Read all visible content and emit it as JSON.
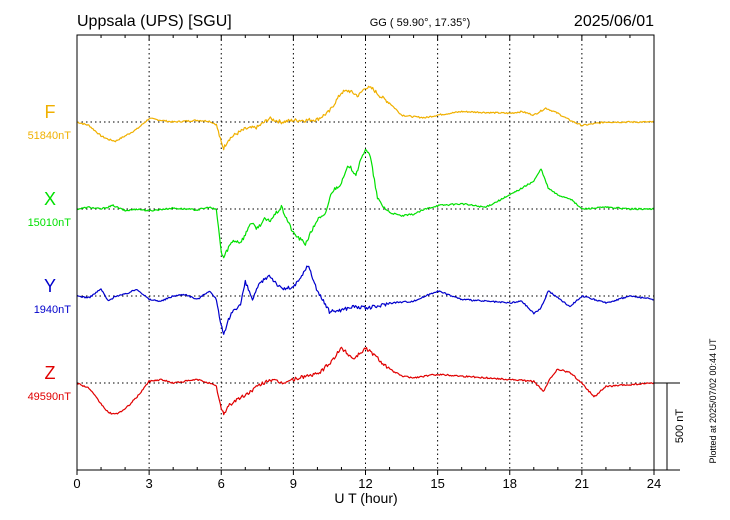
{
  "header": {
    "station": "Uppsala (UPS)  [SGU]",
    "coords": "GG ( 59.90°,  17.35°)",
    "date": "2025/06/01"
  },
  "side_note": "Plotted at 2025/07/02 00:44 UT",
  "scale_label": "500 nT",
  "colors": {
    "F": "#f0b000",
    "X": "#00e000",
    "Y": "#0000cc",
    "Z": "#e00000",
    "axis": "#000000"
  },
  "chart_data": {
    "type": "line",
    "title": "Uppsala (UPS)  [SGU]",
    "xlabel": "U T (hour)",
    "ylabel": "",
    "xlim": [
      0,
      24
    ],
    "x_ticks": [
      0,
      3,
      6,
      9,
      12,
      15,
      18,
      21,
      24
    ],
    "x_tick_labels": [
      "0",
      "3",
      "6",
      "9",
      "12",
      "15",
      "18",
      "21",
      "24"
    ],
    "grid": true,
    "scale_bar_nT": 500,
    "series": [
      {
        "name": "F",
        "baseline_label": "51840nT",
        "color": "#f0b000",
        "x": [
          0,
          0.5,
          1,
          1.3,
          1.6,
          2,
          2.5,
          3,
          3.5,
          4,
          4.5,
          5,
          5.5,
          5.8,
          6,
          6.1,
          6.3,
          6.6,
          7,
          7.5,
          8,
          8.5,
          9,
          9.5,
          10,
          10.5,
          11,
          11.3,
          11.7,
          12,
          12.3,
          12.6,
          13,
          13.5,
          14,
          14.5,
          15,
          16,
          17,
          18,
          18.5,
          19,
          19.5,
          20,
          20.5,
          21,
          21.5,
          22,
          23,
          24
        ],
        "y": [
          0,
          -20,
          -80,
          -100,
          -110,
          -80,
          -40,
          20,
          10,
          0,
          5,
          10,
          5,
          -15,
          -120,
          -150,
          -100,
          -70,
          -40,
          -30,
          20,
          0,
          10,
          10,
          15,
          60,
          170,
          180,
          150,
          200,
          190,
          150,
          110,
          40,
          30,
          25,
          40,
          60,
          55,
          50,
          60,
          40,
          80,
          50,
          10,
          -20,
          -10,
          0,
          0,
          0
        ]
      },
      {
        "name": "X",
        "baseline_label": "15010nT",
        "color": "#00e000",
        "x": [
          0,
          0.5,
          1,
          1.5,
          2,
          2.5,
          3,
          4,
          5,
          5.5,
          5.8,
          6,
          6.1,
          6.3,
          6.5,
          6.8,
          7,
          7.2,
          7.5,
          7.8,
          8,
          8.5,
          9,
          9.5,
          10,
          10.3,
          10.6,
          11,
          11.3,
          11.6,
          12,
          12.2,
          12.5,
          12.7,
          13,
          13.5,
          14,
          14.5,
          15,
          16,
          17,
          18,
          18.5,
          19,
          19.3,
          19.6,
          20,
          20.5,
          21,
          22,
          23,
          24
        ],
        "y": [
          0,
          10,
          0,
          20,
          -10,
          0,
          -10,
          5,
          -5,
          10,
          -5,
          -250,
          -280,
          -220,
          -180,
          -190,
          -150,
          -80,
          -110,
          -60,
          -70,
          10,
          -140,
          -200,
          -60,
          -40,
          100,
          150,
          250,
          200,
          350,
          300,
          60,
          20,
          -20,
          -40,
          -30,
          0,
          20,
          30,
          10,
          80,
          120,
          160,
          230,
          120,
          80,
          60,
          0,
          10,
          0,
          0
        ]
      },
      {
        "name": "Y",
        "baseline_label": "1940nT",
        "color": "#0000cc",
        "x": [
          0,
          0.5,
          1,
          1.3,
          1.6,
          2,
          2.5,
          3,
          3.5,
          4,
          4.5,
          5,
          5.5,
          5.8,
          6,
          6.1,
          6.3,
          6.5,
          6.8,
          7,
          7.3,
          7.6,
          8,
          8.5,
          9,
          9.3,
          9.6,
          10,
          10.5,
          11,
          11.5,
          12,
          12.5,
          13,
          14,
          15,
          16,
          17,
          18,
          18.5,
          19,
          19.3,
          19.6,
          20,
          20.5,
          21,
          21.5,
          22,
          23,
          24
        ],
        "y": [
          0,
          -10,
          40,
          -30,
          0,
          10,
          40,
          -20,
          -30,
          0,
          10,
          -20,
          30,
          -20,
          -170,
          -230,
          -140,
          -80,
          -50,
          80,
          -20,
          70,
          120,
          40,
          50,
          100,
          180,
          30,
          -90,
          -80,
          -60,
          -70,
          -60,
          -40,
          -30,
          30,
          -20,
          -30,
          -40,
          -30,
          -100,
          -70,
          30,
          -10,
          -60,
          0,
          -20,
          -40,
          0,
          -20
        ]
      },
      {
        "name": "Z",
        "baseline_label": "49590nT",
        "color": "#e00000",
        "x": [
          0,
          0.5,
          1,
          1.3,
          1.6,
          2,
          2.5,
          3,
          3.5,
          4,
          4.5,
          5,
          5.5,
          5.8,
          6,
          6.1,
          6.3,
          6.6,
          7,
          7.5,
          8,
          8.5,
          9,
          9.5,
          10,
          10.5,
          11,
          11.5,
          12,
          12.3,
          12.6,
          13,
          13.5,
          14,
          15,
          16,
          17,
          18,
          19,
          19.4,
          19.7,
          20,
          20.5,
          21,
          21.5,
          22,
          23,
          24
        ],
        "y": [
          0,
          -30,
          -120,
          -170,
          -180,
          -150,
          -80,
          10,
          20,
          0,
          10,
          20,
          0,
          -20,
          -150,
          -180,
          -130,
          -100,
          -70,
          -20,
          20,
          0,
          20,
          40,
          50,
          110,
          200,
          140,
          200,
          170,
          130,
          80,
          40,
          30,
          50,
          40,
          30,
          20,
          10,
          -50,
          30,
          80,
          60,
          0,
          -80,
          -20,
          -10,
          0
        ]
      }
    ]
  }
}
